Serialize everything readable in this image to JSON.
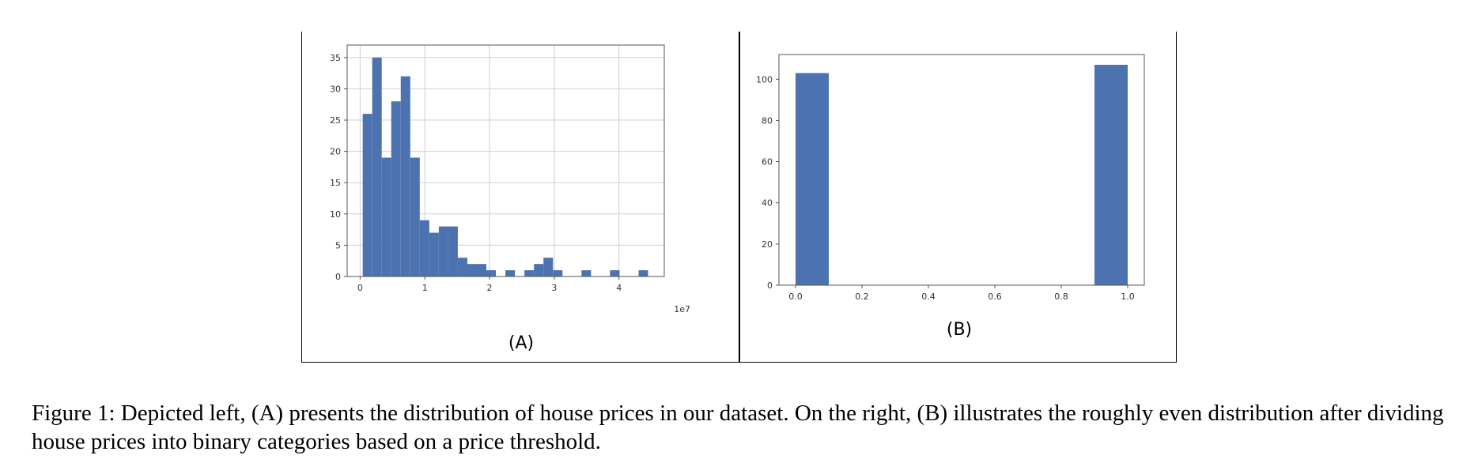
{
  "figure": {
    "caption": "Figure 1: Depicted left, (A) presents the distribution of house prices in our dataset. On the right, (B) illustrates the roughly even distribution after dividing house prices into binary categories based on a price threshold."
  },
  "colors": {
    "bar": "#4c72b0",
    "grid": "#d0d0d0",
    "axis": "#555555"
  },
  "chart_data": [
    {
      "panel_label": "(A)",
      "type": "bar",
      "title": "",
      "xlabel": "",
      "ylabel": "",
      "offset_label": "1e7",
      "grid": true,
      "xlim": [
        -0.2,
        4.7
      ],
      "ylim": [
        0,
        37
      ],
      "x_ticks": [
        0,
        1,
        2,
        3,
        4
      ],
      "x_tick_labels": [
        "0",
        "1",
        "2",
        "3",
        "4"
      ],
      "y_ticks": [
        0,
        5,
        10,
        15,
        20,
        25,
        30,
        35
      ],
      "y_tick_labels": [
        "0",
        "5",
        "10",
        "15",
        "20",
        "25",
        "30",
        "35"
      ],
      "bin_start": 0.04,
      "bin_width": 0.147,
      "values": [
        26,
        35,
        19,
        28,
        32,
        19,
        9,
        7,
        8,
        8,
        3,
        2,
        2,
        1,
        0,
        1,
        0,
        1,
        2,
        3,
        1,
        0,
        0,
        1,
        0,
        0,
        1,
        0,
        0,
        1
      ]
    },
    {
      "panel_label": "(B)",
      "type": "bar",
      "title": "",
      "xlabel": "",
      "ylabel": "",
      "grid": false,
      "xlim": [
        -0.05,
        1.05
      ],
      "ylim": [
        0,
        112
      ],
      "x_ticks": [
        0,
        0.2,
        0.4,
        0.6,
        0.8,
        1.0
      ],
      "x_tick_labels": [
        "0.0",
        "0.2",
        "0.4",
        "0.6",
        "0.8",
        "1.0"
      ],
      "y_ticks": [
        0,
        20,
        40,
        60,
        80,
        100
      ],
      "y_tick_labels": [
        "0",
        "20",
        "40",
        "60",
        "80",
        "100"
      ],
      "bins": [
        {
          "start": 0.0,
          "end": 0.1,
          "value": 103
        },
        {
          "start": 0.9,
          "end": 1.0,
          "value": 107
        }
      ]
    }
  ]
}
